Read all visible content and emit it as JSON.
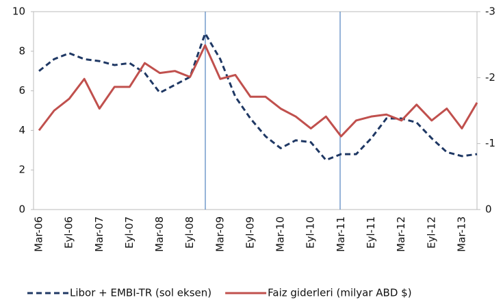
{
  "chart_data": {
    "type": "line",
    "categories": [
      "Mar-06",
      null,
      "Eyl-06",
      null,
      "Mar-07",
      null,
      "Eyl-07",
      null,
      "Mar-08",
      null,
      "Eyl-08",
      null,
      "Mar-09",
      null,
      "Eyl-09",
      null,
      "Mar-10",
      null,
      "Eyl-10",
      null,
      "Mar-11",
      null,
      "Eyl-11",
      null,
      "Mar-12",
      null,
      "Eyl-12",
      null,
      "Mar-13",
      null
    ],
    "series": [
      {
        "name": "Libor + EMBI-TR (sol eksen)",
        "color": "#1f3864",
        "dash": true,
        "values": [
          7.0,
          7.6,
          7.9,
          7.6,
          7.5,
          7.3,
          7.4,
          6.9,
          5.9,
          6.3,
          6.7,
          8.9,
          7.6,
          5.7,
          4.6,
          3.7,
          3.1,
          3.5,
          3.4,
          2.5,
          2.8,
          2.8,
          3.6,
          4.6,
          4.6,
          4.4,
          3.6,
          2.9,
          2.7,
          2.8
        ]
      },
      {
        "name": "Faiz giderleri (milyar ABD $)",
        "color": "#c0504d",
        "axis": "y2",
        "values": [
          -1.2,
          -1.5,
          -1.68,
          -1.98,
          -1.53,
          -1.86,
          -1.86,
          -2.22,
          -2.07,
          -2.1,
          -2.01,
          -2.49,
          -1.98,
          -2.04,
          -1.71,
          -1.71,
          -1.53,
          -1.41,
          -1.23,
          -1.41,
          -1.11,
          -1.35,
          -1.41,
          -1.44,
          -1.35,
          -1.59,
          -1.35,
          -1.53,
          -1.23,
          -1.62
        ]
      }
    ],
    "ylim": [
      0,
      10
    ],
    "yticks": [
      0,
      2,
      4,
      6,
      8,
      10
    ],
    "y2lim": [
      0,
      -3
    ],
    "y2ticks": [
      0,
      -1,
      -2,
      -3
    ],
    "legend": "bottom"
  }
}
